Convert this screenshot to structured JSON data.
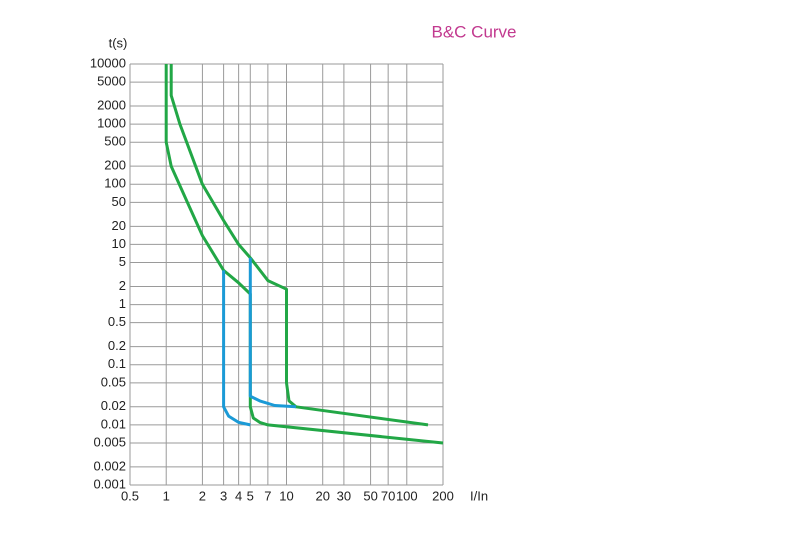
{
  "chart_data": {
    "type": "line",
    "title": "B&C Curve",
    "title_color": "#c2398f",
    "x_label": "I/In",
    "y_label": "t(s)",
    "xscale": "log",
    "yscale": "log",
    "grid": true,
    "xlim": [
      0.5,
      200
    ],
    "ylim": [
      0.001,
      10000
    ],
    "xticks": [
      0.5,
      1,
      2,
      3,
      4,
      5,
      7,
      10,
      20,
      30,
      50,
      70,
      100,
      200
    ],
    "yticks": [
      10000,
      5000,
      2000,
      1000,
      500,
      200,
      100,
      50,
      20,
      10,
      5,
      2,
      1,
      0.5,
      0.2,
      0.1,
      0.05,
      0.02,
      0.01,
      0.005,
      0.002,
      0.001
    ],
    "series": [
      {
        "color": "#22a746",
        "x": [
          1,
          1,
          1,
          1.1,
          1.5,
          2,
          3,
          4,
          5,
          5,
          5.3,
          6,
          7,
          200
        ],
        "values": [
          10000,
          1000,
          500,
          200,
          50,
          14,
          3.7,
          2.3,
          1.5,
          0.02,
          0.013,
          0.011,
          0.01,
          0.005
        ]
      },
      {
        "color": "#22a746",
        "x": [
          1.1,
          1.1,
          1.3,
          2,
          3,
          4,
          5,
          7,
          10,
          10,
          10.5,
          12,
          150
        ],
        "values": [
          10000,
          3000,
          1000,
          100,
          25,
          10,
          6,
          2.5,
          1.8,
          0.05,
          0.025,
          0.02,
          0.01
        ]
      },
      {
        "color": "#1b9ad6",
        "x": [
          3,
          3,
          3.3,
          4,
          5
        ],
        "values": [
          3.7,
          0.02,
          0.014,
          0.011,
          0.01
        ]
      },
      {
        "color": "#1b9ad6",
        "x": [
          5,
          5,
          6,
          8,
          12
        ],
        "values": [
          6,
          0.03,
          0.025,
          0.021,
          0.02
        ]
      }
    ]
  }
}
